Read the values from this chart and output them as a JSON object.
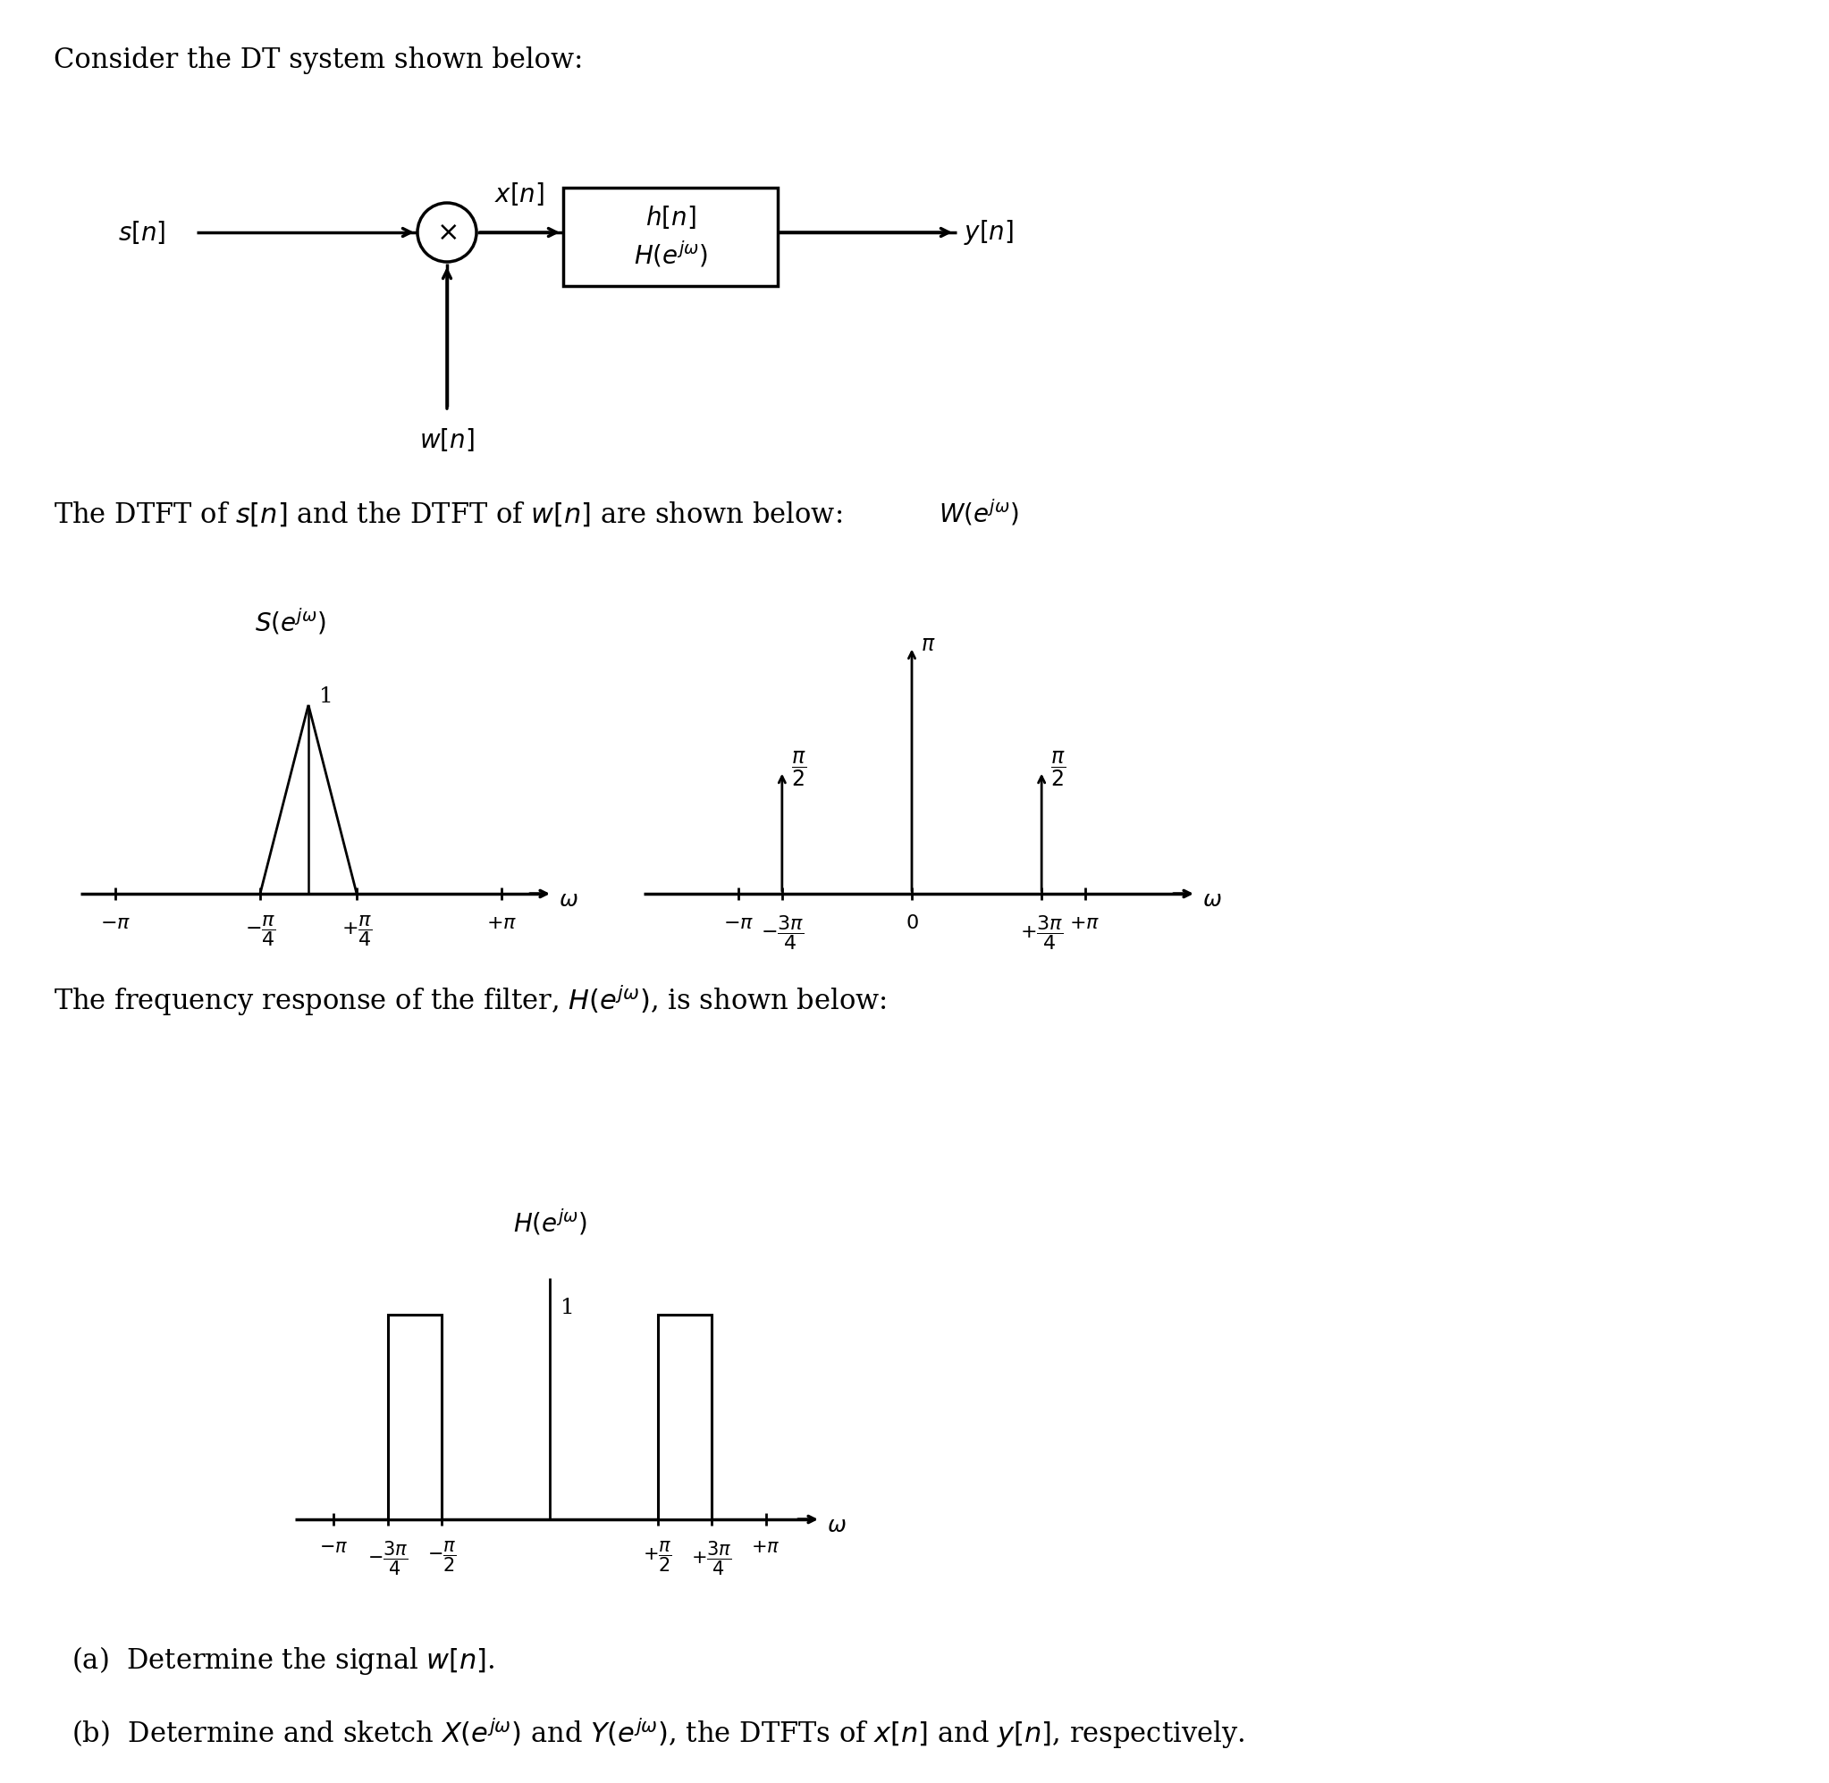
{
  "bg_color": "#ffffff",
  "title": "Consider the DT system shown below:",
  "dtft_text": "The DTFT of $s[n]$ and the DTFT of $w[n]$ are shown below:",
  "filter_text": "The frequency response of the filter, $H(e^{j\\omega})$, is shown below:",
  "part_a": "(a)  Determine the signal $w[n]$.",
  "part_b": "(b)  Determine and sketch $X(e^{j\\omega})$ and $Y(e^{j\\omega})$, the DTFTs of $x[n]$ and $y[n]$, respectively.",
  "block_diagram": {
    "s_label": "$s[n]$",
    "x_label": "$x[n]$",
    "h_label": "$h[n]$",
    "H_label": "$H(e^{j\\omega})$",
    "y_label": "$y[n]$",
    "w_label": "$w[n]$"
  }
}
